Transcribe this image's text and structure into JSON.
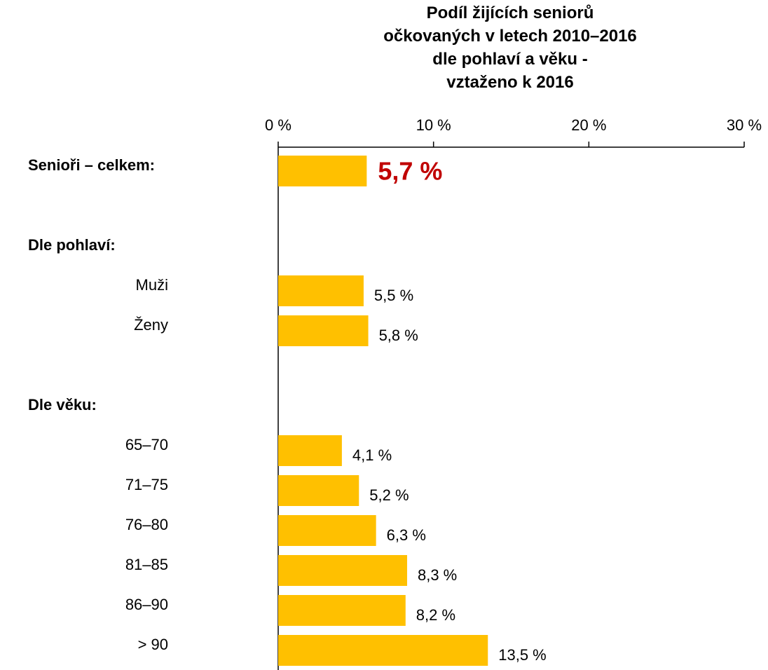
{
  "chart_data": {
    "type": "bar",
    "orientation": "horizontal",
    "title": "Podíl žijících seniorů\nočkovaných v letech 2010–2016\ndle pohlaví a věku -\nvztaženo k 2016",
    "categories": [
      "Senioři – celkem:",
      null,
      "Dle pohlaví:",
      "Muži",
      "Ženy",
      null,
      "Dle věku:",
      "65–70",
      "71–75",
      "76–80",
      "81–85",
      "86–90",
      "> 90"
    ],
    "label_styles": [
      "heading",
      null,
      "heading",
      "item",
      "item",
      null,
      "heading",
      "item",
      "item",
      "item",
      "item",
      "item",
      "item"
    ],
    "values": [
      5.7,
      null,
      null,
      5.5,
      5.8,
      null,
      null,
      4.1,
      5.2,
      6.3,
      8.3,
      8.2,
      13.5
    ],
    "value_labels": [
      "5,7 %",
      null,
      null,
      "5,5 %",
      "5,8 %",
      null,
      null,
      "4,1 %",
      "5,2 %",
      "6,3 %",
      "8,3 %",
      "8,2 %",
      "13,5 %"
    ],
    "emphasized_row": 0,
    "emphasis_color": "#c00000",
    "color": "#ffc000",
    "xlim": [
      0,
      30
    ],
    "xticks": [
      {
        "value": 0,
        "label": "0 %"
      },
      {
        "value": 10,
        "label": "10 %"
      },
      {
        "value": 20,
        "label": "20 %"
      },
      {
        "value": 30,
        "label": "30 %"
      }
    ]
  }
}
